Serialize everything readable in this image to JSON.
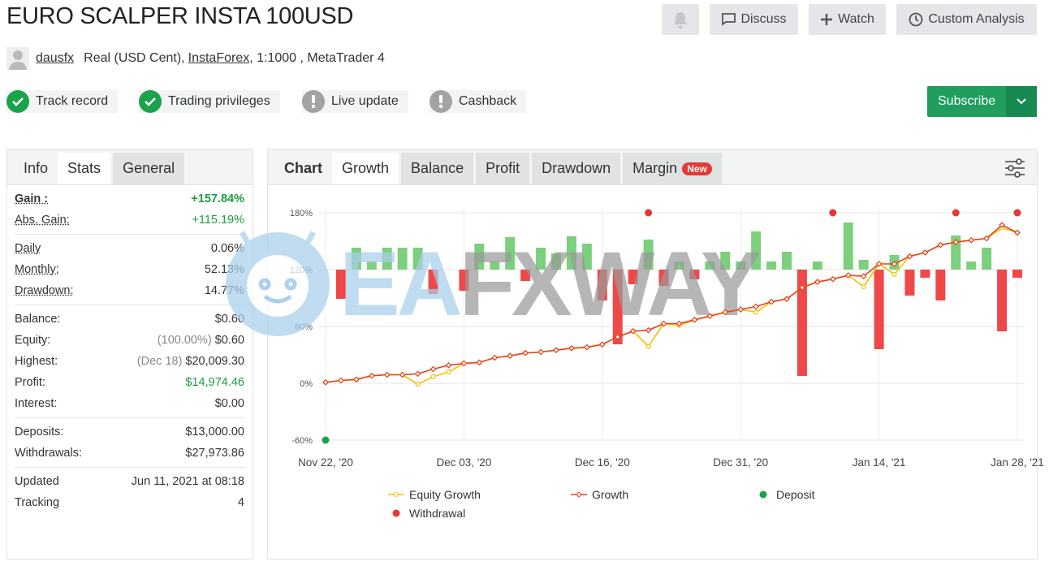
{
  "header": {
    "title": "EURO SCALPER INSTA 100USD",
    "buttons": [
      "Discuss",
      "Watch",
      "Custom Analysis"
    ],
    "user": "dausfx",
    "account": "Real (USD Cent),",
    "broker": "InstaForex",
    "details": ", 1:1000 , MetaTrader 4",
    "badges": [
      {
        "label": "Track record",
        "ok": true
      },
      {
        "label": "Trading privileges",
        "ok": true
      },
      {
        "label": "Live update",
        "ok": false
      },
      {
        "label": "Cashback",
        "ok": false
      }
    ],
    "subscribe": "Subscribe"
  },
  "stats": {
    "tabs": [
      "Info",
      "Stats",
      "General"
    ],
    "groups": [
      [
        {
          "label": "Gain :",
          "value": "+157.84%",
          "color": "#1a9e3f",
          "bold": true
        },
        {
          "label": "Abs. Gain:",
          "value": "+115.19%",
          "color": "#1a9e3f"
        }
      ],
      [
        {
          "label": "Daily",
          "value": "0.06%"
        },
        {
          "label": "Monthly:",
          "value": "52.13%"
        },
        {
          "label": "Drawdown:",
          "value": "14.77%"
        }
      ],
      [
        {
          "label": "Balance:",
          "value": "$0.60"
        },
        {
          "label": "Equity:",
          "note": "(100.00%)",
          "value": "$0.60"
        },
        {
          "label": "Highest:",
          "note": "(Dec 18)",
          "value": "$20,009.30"
        },
        {
          "label": "Profit:",
          "value": "$14,974.46",
          "color": "#1a9e3f"
        },
        {
          "label": "Interest:",
          "value": "$0.00"
        }
      ],
      [
        {
          "label": "Deposits:",
          "value": "$13,000.00"
        },
        {
          "label": "Withdrawals:",
          "value": "$27,973.86"
        }
      ],
      [
        {
          "label": "Updated",
          "value": "Jun 11, 2021 at 08:18"
        },
        {
          "label": "Tracking",
          "value": "4"
        }
      ]
    ]
  },
  "chart_tabs": {
    "tabs": [
      "Chart",
      "Growth",
      "Balance",
      "Profit",
      "Drawdown",
      "Margin"
    ],
    "badge": "New"
  },
  "watermark": [
    "EA",
    "FXWAY"
  ],
  "chart_data": {
    "type": "line",
    "categories": [
      "Nov 22, '20",
      null,
      null,
      null,
      null,
      null,
      null,
      null,
      null,
      "Dec 03, '20",
      null,
      null,
      null,
      null,
      null,
      null,
      null,
      null,
      "Dec 16, '20",
      null,
      null,
      null,
      null,
      null,
      null,
      null,
      null,
      "Dec 31, '20",
      null,
      null,
      null,
      null,
      null,
      null,
      null,
      null,
      "Jan 14, '21",
      null,
      null,
      null,
      null,
      null,
      null,
      null,
      null,
      "Jan 28, '21"
    ],
    "ylim": [
      -60,
      180
    ],
    "yticks": [
      {
        "value": -60,
        "label": "-60%"
      },
      {
        "value": 0,
        "label": "0%"
      },
      {
        "value": 60,
        "label": "60%"
      },
      {
        "value": 120,
        "label": "120%"
      },
      {
        "value": 180,
        "label": "180%"
      }
    ],
    "y2lim": [
      -210,
      70
    ],
    "grid": true,
    "series": [
      {
        "name": "Equity Growth",
        "color": "#f2c200",
        "marker": "circle",
        "values": [
          1,
          3,
          4,
          8,
          9,
          9,
          -1,
          7,
          12,
          21,
          22,
          27,
          29,
          32,
          33,
          35,
          37,
          38,
          41,
          49,
          55,
          39,
          63,
          61,
          67,
          71,
          75,
          78,
          75,
          86,
          89,
          101,
          107,
          110,
          114,
          102,
          126,
          115,
          134,
          138,
          146,
          149,
          151,
          153,
          164,
          159
        ]
      },
      {
        "name": "Growth",
        "color": "#e8401c",
        "marker": "diamond",
        "values": [
          1,
          3,
          4,
          8,
          9,
          9,
          10,
          15,
          19,
          21,
          22,
          27,
          29,
          32,
          33,
          35,
          37,
          38,
          41,
          49,
          55,
          56,
          63,
          63,
          67,
          71,
          75,
          78,
          81,
          86,
          89,
          101,
          107,
          110,
          114,
          113,
          126,
          126,
          134,
          138,
          146,
          149,
          151,
          153,
          167,
          159
        ]
      },
      {
        "name": "Deposit",
        "color": "#1aa34a",
        "marker": "dot",
        "values": [
          -60,
          null,
          null,
          null,
          null,
          null,
          null,
          null,
          null,
          null,
          null,
          null,
          null,
          null,
          null,
          null,
          null,
          null,
          null,
          null,
          null,
          null,
          null,
          null,
          null,
          null,
          null,
          null,
          null,
          null,
          null,
          null,
          null,
          null,
          null,
          null,
          null,
          null,
          null,
          null,
          null,
          null,
          null,
          null,
          null,
          null
        ]
      },
      {
        "name": "Withdrawal",
        "color": "#e53935",
        "marker": "dot",
        "values": [
          null,
          null,
          null,
          null,
          null,
          null,
          null,
          null,
          null,
          null,
          null,
          null,
          null,
          null,
          null,
          null,
          null,
          null,
          null,
          null,
          null,
          180,
          null,
          null,
          null,
          null,
          null,
          null,
          null,
          null,
          null,
          null,
          null,
          180,
          null,
          null,
          null,
          null,
          null,
          null,
          null,
          180,
          null,
          null,
          null,
          180
        ]
      }
    ],
    "bars": {
      "axis": "y2",
      "up_color": "#7ccf7c",
      "down_color": "#f04848",
      "values": [
        null,
        -36,
        27,
        10,
        27,
        27,
        27,
        -30,
        null,
        -26,
        32,
        10,
        40,
        -14,
        27,
        20,
        41,
        32,
        -38,
        -92,
        -18,
        37,
        -20,
        10,
        -12,
        10,
        22,
        10,
        47,
        10,
        22,
        -131,
        10,
        null,
        58,
        12,
        -98,
        18,
        -32,
        -10,
        -38,
        42,
        10,
        27,
        -76,
        -10
      ]
    }
  }
}
